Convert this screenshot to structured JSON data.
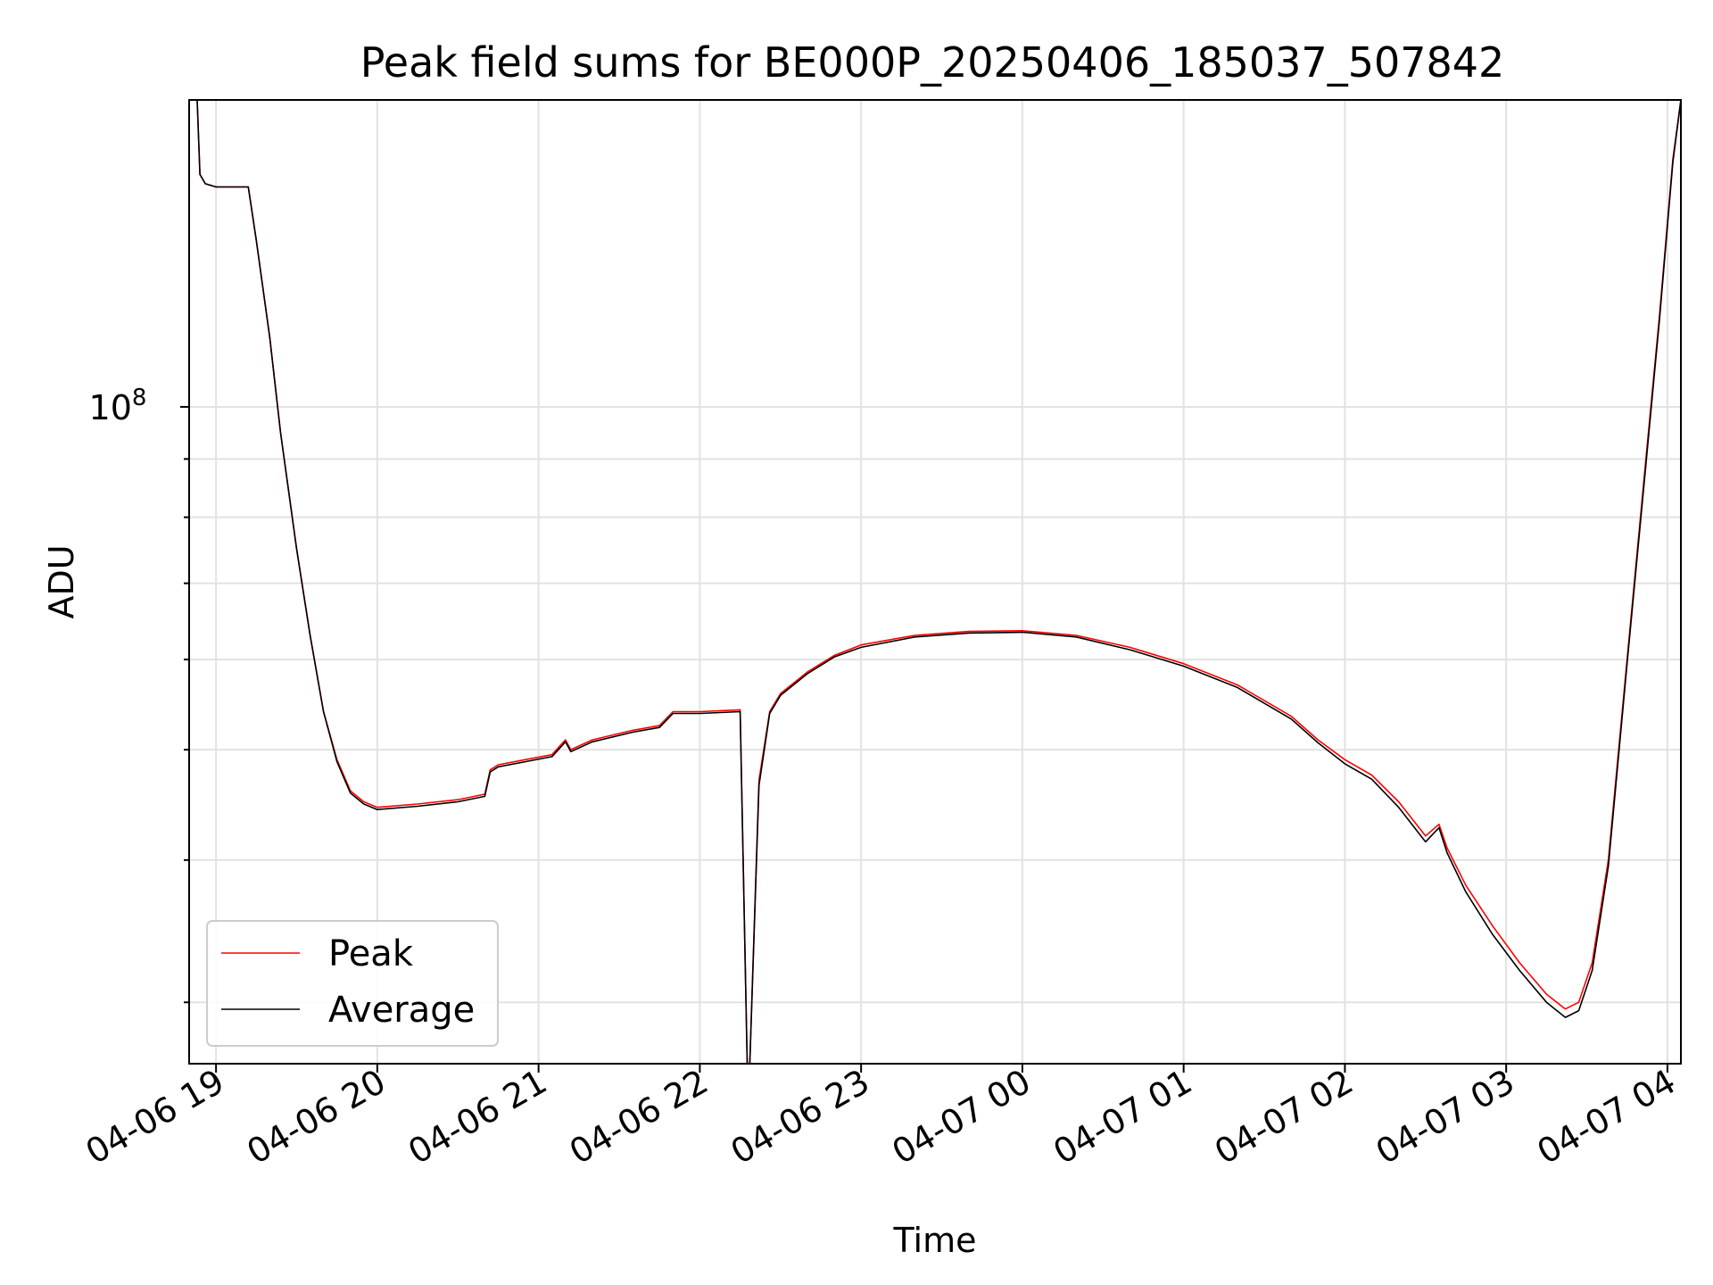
{
  "chart_data": {
    "type": "line",
    "title": "Peak field sums for BE000P_20250406_185037_507842",
    "xlabel": "Time",
    "ylabel": "ADU",
    "y_scale": "log",
    "ylim": [
      26500000,
      186000000
    ],
    "xlim": [
      "2025-04-06 18:50",
      "2025-04-07 04:05"
    ],
    "grid": true,
    "legend_position": "lower-left",
    "x_ticks": [
      {
        "t": "2025-04-06 19:00",
        "label": "04-06 19"
      },
      {
        "t": "2025-04-06 20:00",
        "label": "04-06 20"
      },
      {
        "t": "2025-04-06 21:00",
        "label": "04-06 21"
      },
      {
        "t": "2025-04-06 22:00",
        "label": "04-06 22"
      },
      {
        "t": "2025-04-06 23:00",
        "label": "04-06 23"
      },
      {
        "t": "2025-04-07 00:00",
        "label": "04-07 00"
      },
      {
        "t": "2025-04-07 01:00",
        "label": "04-07 01"
      },
      {
        "t": "2025-04-07 02:00",
        "label": "04-07 02"
      },
      {
        "t": "2025-04-07 03:00",
        "label": "04-07 03"
      },
      {
        "t": "2025-04-07 04:00",
        "label": "04-07 04"
      }
    ],
    "y_ticks_major": [
      {
        "value": 100000000,
        "label_base": "10",
        "label_exp": "8"
      }
    ],
    "y_ticks_minor": [
      30000000,
      40000000,
      50000000,
      60000000,
      70000000,
      80000000,
      90000000,
      200000000
    ],
    "series": [
      {
        "name": "Peak",
        "color": "#ff0000",
        "points": [
          [
            "2025-04-06 18:53",
            186000000
          ],
          [
            "2025-04-06 18:54",
            160000000
          ],
          [
            "2025-04-06 18:56",
            157000000
          ],
          [
            "2025-04-06 19:00",
            156000000
          ],
          [
            "2025-04-06 19:12",
            156000000
          ],
          [
            "2025-04-06 19:15",
            140000000
          ],
          [
            "2025-04-06 19:20",
            115000000
          ],
          [
            "2025-04-06 19:24",
            95000000
          ],
          [
            "2025-04-06 19:30",
            75000000
          ],
          [
            "2025-04-06 19:35",
            63000000
          ],
          [
            "2025-04-06 19:40",
            54000000
          ],
          [
            "2025-04-06 19:45",
            49000000
          ],
          [
            "2025-04-06 19:50",
            46000000
          ],
          [
            "2025-04-06 19:55",
            45000000
          ],
          [
            "2025-04-06 20:00",
            44500000
          ],
          [
            "2025-04-06 20:15",
            44800000
          ],
          [
            "2025-04-06 20:30",
            45200000
          ],
          [
            "2025-04-06 20:40",
            45700000
          ],
          [
            "2025-04-06 20:42",
            48000000
          ],
          [
            "2025-04-06 20:45",
            48500000
          ],
          [
            "2025-04-06 20:55",
            49000000
          ],
          [
            "2025-04-06 21:05",
            49500000
          ],
          [
            "2025-04-06 21:10",
            51000000
          ],
          [
            "2025-04-06 21:12",
            50000000
          ],
          [
            "2025-04-06 21:20",
            51000000
          ],
          [
            "2025-04-06 21:35",
            52000000
          ],
          [
            "2025-04-06 21:45",
            52500000
          ],
          [
            "2025-04-06 21:50",
            54000000
          ],
          [
            "2025-04-06 22:00",
            54000000
          ],
          [
            "2025-04-06 22:15",
            54200000
          ],
          [
            "2025-04-06 22:18",
            24000000
          ],
          [
            "2025-04-06 22:22",
            47000000
          ],
          [
            "2025-04-06 22:26",
            54000000
          ],
          [
            "2025-04-06 22:30",
            56000000
          ],
          [
            "2025-04-06 22:40",
            58500000
          ],
          [
            "2025-04-06 22:50",
            60500000
          ],
          [
            "2025-04-06 23:00",
            61800000
          ],
          [
            "2025-04-06 23:20",
            63000000
          ],
          [
            "2025-04-06 23:40",
            63500000
          ],
          [
            "2025-04-07 00:00",
            63600000
          ],
          [
            "2025-04-07 00:20",
            63000000
          ],
          [
            "2025-04-07 00:40",
            61500000
          ],
          [
            "2025-04-07 01:00",
            59500000
          ],
          [
            "2025-04-07 01:20",
            57000000
          ],
          [
            "2025-04-07 01:40",
            53500000
          ],
          [
            "2025-04-07 01:50",
            51000000
          ],
          [
            "2025-04-07 02:00",
            49000000
          ],
          [
            "2025-04-07 02:10",
            47500000
          ],
          [
            "2025-04-07 02:20",
            45000000
          ],
          [
            "2025-04-07 02:30",
            42000000
          ],
          [
            "2025-04-07 02:35",
            43000000
          ],
          [
            "2025-04-07 02:38",
            41000000
          ],
          [
            "2025-04-07 02:45",
            38000000
          ],
          [
            "2025-04-07 02:55",
            35000000
          ],
          [
            "2025-04-07 03:05",
            32500000
          ],
          [
            "2025-04-07 03:15",
            30500000
          ],
          [
            "2025-04-07 03:22",
            29600000
          ],
          [
            "2025-04-07 03:27",
            30000000
          ],
          [
            "2025-04-07 03:32",
            32500000
          ],
          [
            "2025-04-07 03:38",
            40000000
          ],
          [
            "2025-04-07 03:45",
            60000000
          ],
          [
            "2025-04-07 03:52",
            90000000
          ],
          [
            "2025-04-07 03:57",
            120000000
          ],
          [
            "2025-04-07 04:02",
            165000000
          ],
          [
            "2025-04-07 04:05",
            186000000
          ]
        ]
      },
      {
        "name": "Average",
        "color": "#000000",
        "points": [
          [
            "2025-04-06 18:53",
            186000000
          ],
          [
            "2025-04-06 18:54",
            160000000
          ],
          [
            "2025-04-06 18:56",
            157000000
          ],
          [
            "2025-04-06 19:00",
            156000000
          ],
          [
            "2025-04-06 19:12",
            156000000
          ],
          [
            "2025-04-06 19:15",
            140000000
          ],
          [
            "2025-04-06 19:20",
            115000000
          ],
          [
            "2025-04-06 19:24",
            95000000
          ],
          [
            "2025-04-06 19:30",
            75000000
          ],
          [
            "2025-04-06 19:35",
            63000000
          ],
          [
            "2025-04-06 19:40",
            54000000
          ],
          [
            "2025-04-06 19:45",
            48800000
          ],
          [
            "2025-04-06 19:50",
            45800000
          ],
          [
            "2025-04-06 19:55",
            44800000
          ],
          [
            "2025-04-06 20:00",
            44300000
          ],
          [
            "2025-04-06 20:15",
            44600000
          ],
          [
            "2025-04-06 20:30",
            45000000
          ],
          [
            "2025-04-06 20:40",
            45500000
          ],
          [
            "2025-04-06 20:42",
            47800000
          ],
          [
            "2025-04-06 20:45",
            48300000
          ],
          [
            "2025-04-06 20:55",
            48800000
          ],
          [
            "2025-04-06 21:05",
            49300000
          ],
          [
            "2025-04-06 21:10",
            50800000
          ],
          [
            "2025-04-06 21:12",
            49800000
          ],
          [
            "2025-04-06 21:20",
            50800000
          ],
          [
            "2025-04-06 21:35",
            51800000
          ],
          [
            "2025-04-06 21:45",
            52300000
          ],
          [
            "2025-04-06 21:50",
            53800000
          ],
          [
            "2025-04-06 22:00",
            53800000
          ],
          [
            "2025-04-06 22:15",
            54000000
          ],
          [
            "2025-04-06 22:18",
            24000000
          ],
          [
            "2025-04-06 22:22",
            46500000
          ],
          [
            "2025-04-06 22:26",
            53800000
          ],
          [
            "2025-04-06 22:30",
            55800000
          ],
          [
            "2025-04-06 22:40",
            58300000
          ],
          [
            "2025-04-06 22:50",
            60300000
          ],
          [
            "2025-04-06 23:00",
            61500000
          ],
          [
            "2025-04-06 23:20",
            62800000
          ],
          [
            "2025-04-06 23:40",
            63300000
          ],
          [
            "2025-04-07 00:00",
            63400000
          ],
          [
            "2025-04-07 00:20",
            62800000
          ],
          [
            "2025-04-07 00:40",
            61200000
          ],
          [
            "2025-04-07 01:00",
            59200000
          ],
          [
            "2025-04-07 01:20",
            56700000
          ],
          [
            "2025-04-07 01:40",
            53200000
          ],
          [
            "2025-04-07 01:50",
            50700000
          ],
          [
            "2025-04-07 02:00",
            48600000
          ],
          [
            "2025-04-07 02:10",
            47100000
          ],
          [
            "2025-04-07 02:20",
            44500000
          ],
          [
            "2025-04-07 02:30",
            41500000
          ],
          [
            "2025-04-07 02:35",
            42700000
          ],
          [
            "2025-04-07 02:38",
            40600000
          ],
          [
            "2025-04-07 02:45",
            37500000
          ],
          [
            "2025-04-07 02:55",
            34400000
          ],
          [
            "2025-04-07 03:05",
            32000000
          ],
          [
            "2025-04-07 03:15",
            30000000
          ],
          [
            "2025-04-07 03:22",
            29100000
          ],
          [
            "2025-04-07 03:27",
            29500000
          ],
          [
            "2025-04-07 03:32",
            32000000
          ],
          [
            "2025-04-07 03:38",
            39500000
          ],
          [
            "2025-04-07 03:45",
            59500000
          ],
          [
            "2025-04-07 03:52",
            89000000
          ],
          [
            "2025-04-07 03:57",
            119000000
          ],
          [
            "2025-04-07 04:02",
            164000000
          ],
          [
            "2025-04-07 04:05",
            186000000
          ]
        ]
      }
    ]
  }
}
